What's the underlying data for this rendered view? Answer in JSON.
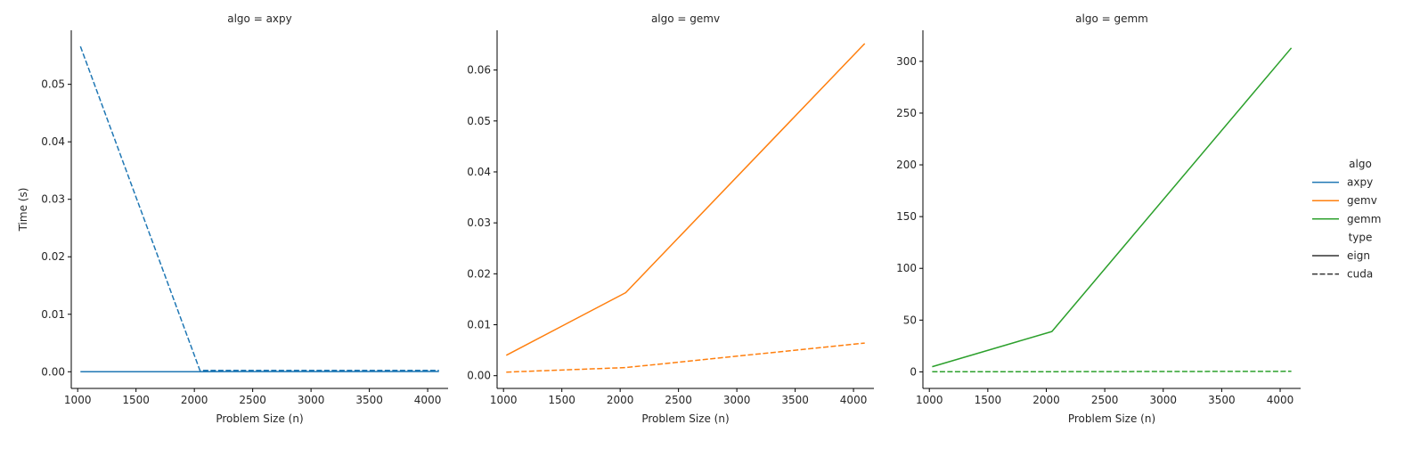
{
  "chart_data": {
    "type": "line",
    "ylabel": "Time (s)",
    "xlabel": "Problem Size (n)",
    "colors": {
      "axpy": "#1f77b4",
      "gemv": "#ff7f0e",
      "gemm": "#2ca02c"
    },
    "legend": {
      "placement": "right",
      "hue_title": "algo",
      "hue_items": [
        {
          "label": "axpy",
          "color": "#1f77b4"
        },
        {
          "label": "gemv",
          "color": "#ff7f0e"
        },
        {
          "label": "gemm",
          "color": "#2ca02c"
        }
      ],
      "style_title": "type",
      "style_items": [
        {
          "label": "eign",
          "dash": "solid"
        },
        {
          "label": "cuda",
          "dash": "dashed"
        }
      ]
    },
    "panels": [
      {
        "title": "algo = axpy",
        "color": "#1f77b4",
        "xlim": [
          945,
          4175
        ],
        "ylim": [
          -0.0029,
          0.0594
        ],
        "xticks": [
          1000,
          1500,
          2000,
          2500,
          3000,
          3500,
          4000
        ],
        "xtick_labels": [
          "1000",
          "1500",
          "2000",
          "2500",
          "3000",
          "3500",
          "4000"
        ],
        "yticks": [
          0,
          0.01,
          0.02,
          0.03,
          0.04,
          0.05
        ],
        "ytick_labels": [
          "0.00",
          "0.01",
          "0.02",
          "0.03",
          "0.04",
          "0.05"
        ],
        "series": [
          {
            "name": "eign",
            "dash": "solid",
            "x": [
              1024,
              2048,
              4096
            ],
            "y": [
              1e-05,
              2e-05,
              4e-05
            ]
          },
          {
            "name": "cuda",
            "dash": "dashed",
            "x": [
              1024,
              2048,
              4096
            ],
            "y": [
              0.0566,
              0.00025,
              0.00025
            ]
          }
        ]
      },
      {
        "title": "algo = gemv",
        "color": "#ff7f0e",
        "xlim": [
          945,
          4175
        ],
        "ylim": [
          -0.0025,
          0.0678
        ],
        "xticks": [
          1000,
          1500,
          2000,
          2500,
          3000,
          3500,
          4000
        ],
        "xtick_labels": [
          "1000",
          "1500",
          "2000",
          "2500",
          "3000",
          "3500",
          "4000"
        ],
        "yticks": [
          0,
          0.01,
          0.02,
          0.03,
          0.04,
          0.05,
          0.06
        ],
        "ytick_labels": [
          "0.00",
          "0.01",
          "0.02",
          "0.03",
          "0.04",
          "0.05",
          "0.06"
        ],
        "series": [
          {
            "name": "eign",
            "dash": "solid",
            "x": [
              1024,
              2048,
              4096
            ],
            "y": [
              0.004,
              0.0163,
              0.0652
            ]
          },
          {
            "name": "cuda",
            "dash": "dashed",
            "x": [
              1024,
              2048,
              4096
            ],
            "y": [
              0.0007,
              0.0016,
              0.0064
            ]
          }
        ]
      },
      {
        "title": "algo = gemm",
        "color": "#2ca02c",
        "xlim": [
          945,
          4175
        ],
        "ylim": [
          -16,
          330
        ],
        "xticks": [
          1000,
          1500,
          2000,
          2500,
          3000,
          3500,
          4000
        ],
        "xtick_labels": [
          "1000",
          "1500",
          "2000",
          "2500",
          "3000",
          "3500",
          "4000"
        ],
        "yticks": [
          0,
          50,
          100,
          150,
          200,
          250,
          300
        ],
        "ytick_labels": [
          "0",
          "50",
          "100",
          "150",
          "200",
          "250",
          "300"
        ],
        "series": [
          {
            "name": "eign",
            "dash": "solid",
            "x": [
              1024,
              2048,
              4096
            ],
            "y": [
              5,
              39,
              313
            ]
          },
          {
            "name": "cuda",
            "dash": "dashed",
            "x": [
              1024,
              2048,
              4096
            ],
            "y": [
              0.1,
              0.2,
              0.5
            ]
          }
        ]
      }
    ]
  }
}
